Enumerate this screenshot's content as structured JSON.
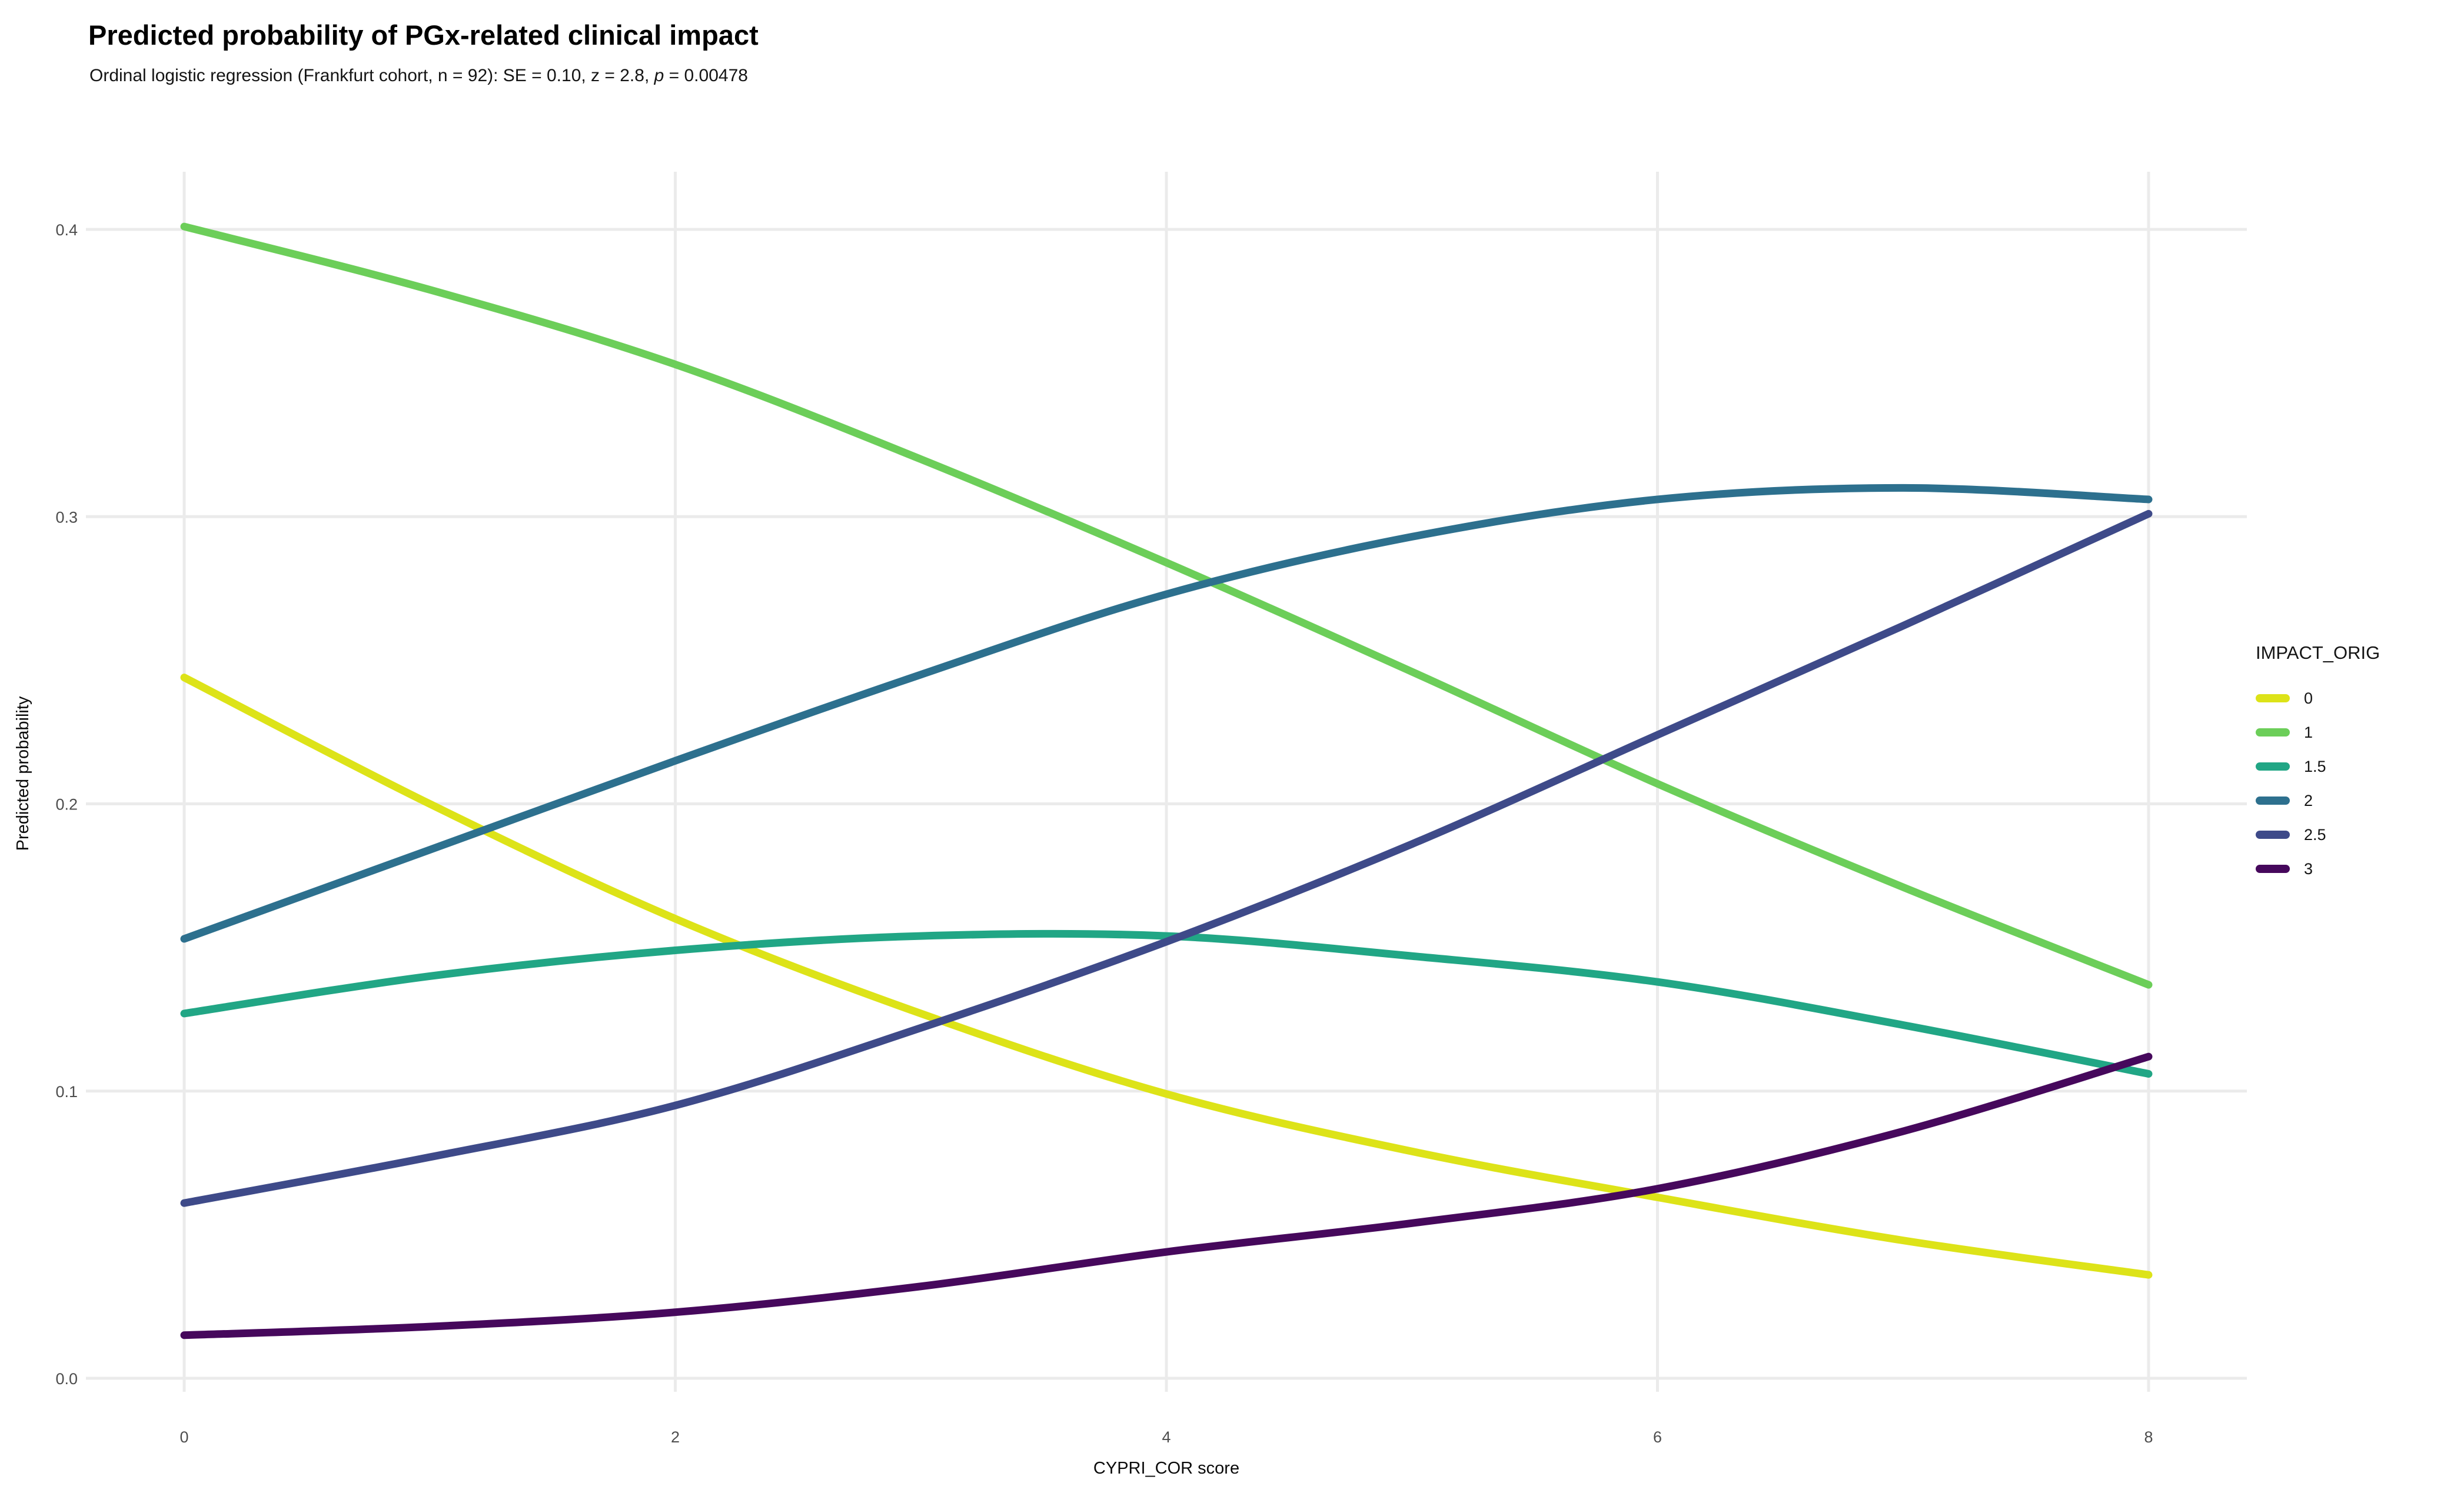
{
  "header": {
    "title": "Predicted probability of PGx-related clinical impact",
    "subtitle_prefix": "Ordinal logistic regression (Frankfurt cohort, n = 92): SE = 0.10, z = 2.8, ",
    "subtitle_stat_symbol": "p",
    "subtitle_suffix": " = 0.00478"
  },
  "chart_data": {
    "type": "line",
    "title": "Predicted probability of PGx-related clinical impact",
    "subtitle": "Ordinal logistic regression (Frankfurt cohort, n = 92): SE = 0.10, z = 2.8, p = 0.00478",
    "xlabel": "CYPRI_COR score",
    "ylabel": "Predicted probability",
    "xlim": [
      0,
      8
    ],
    "ylim": [
      0,
      0.42
    ],
    "grid": true,
    "legend_title": "IMPACT_ORIG",
    "legend_position": "right",
    "x_ticks": [
      0,
      2,
      4,
      6,
      8
    ],
    "x_tick_labels": [
      "0",
      "2",
      "4",
      "6",
      "8"
    ],
    "y_ticks": [
      0,
      0.1,
      0.2,
      0.3,
      0.4
    ],
    "y_tick_labels": [
      "0.0",
      "0.1",
      "0.2",
      "0.3",
      "0.4"
    ],
    "x": [
      0,
      1,
      2,
      3,
      4,
      5,
      6,
      7,
      8
    ],
    "series": [
      {
        "name": "0",
        "color": "#DDE318",
        "values": [
          0.244,
          0.2,
          0.16,
          0.127,
          0.099,
          0.079,
          0.063,
          0.048,
          0.036
        ]
      },
      {
        "name": "1",
        "color": "#6CCE59",
        "values": [
          0.401,
          0.379,
          0.353,
          0.32,
          0.284,
          0.246,
          0.207,
          0.171,
          0.137
        ]
      },
      {
        "name": "1.5",
        "color": "#21A685",
        "values": [
          0.127,
          0.14,
          0.149,
          0.154,
          0.154,
          0.147,
          0.138,
          0.123,
          0.106
        ]
      },
      {
        "name": "2",
        "color": "#2D708E",
        "values": [
          0.153,
          0.184,
          0.215,
          0.245,
          0.273,
          0.293,
          0.306,
          0.31,
          0.306
        ]
      },
      {
        "name": "2.5",
        "color": "#3E4A89",
        "values": [
          0.061,
          0.077,
          0.095,
          0.122,
          0.152,
          0.186,
          0.224,
          0.262,
          0.301
        ]
      },
      {
        "name": "3",
        "color": "#46085C",
        "values": [
          0.015,
          0.018,
          0.023,
          0.032,
          0.044,
          0.054,
          0.066,
          0.086,
          0.112
        ]
      }
    ]
  }
}
